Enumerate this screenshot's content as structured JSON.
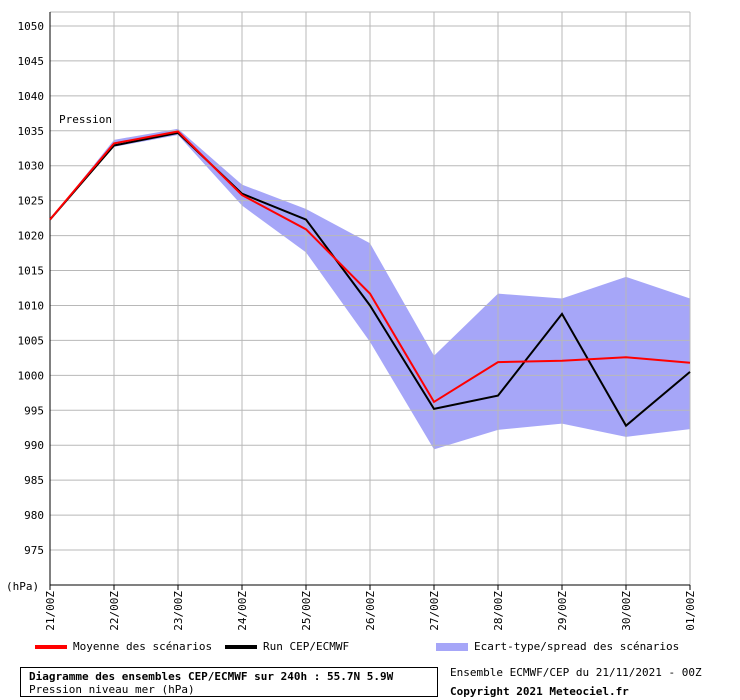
{
  "chart_data": {
    "type": "line",
    "ylabel": "(hPa)",
    "annotation": "Pression",
    "ylim": [
      970,
      1052
    ],
    "y_ticks": [
      975,
      980,
      985,
      990,
      995,
      1000,
      1005,
      1010,
      1015,
      1020,
      1025,
      1030,
      1035,
      1040,
      1045,
      1050
    ],
    "categories": [
      "21/00Z",
      "22/00Z",
      "23/00Z",
      "24/00Z",
      "25/00Z",
      "26/00Z",
      "27/00Z",
      "28/00Z",
      "29/00Z",
      "30/00Z",
      "01/00Z"
    ],
    "grid": true,
    "legend_position": "bottom",
    "series": [
      {
        "name": "Moyenne des scénarios",
        "color": "#ff0000",
        "values": [
          1022.3,
          1033.2,
          1034.9,
          1025.8,
          1020.9,
          1011.7,
          996.2,
          1001.9,
          1002.1,
          1002.6,
          1001.8
        ]
      },
      {
        "name": "Run CEP/ECMWF",
        "color": "#000000",
        "values": [
          1022.3,
          1032.9,
          1034.7,
          1026.0,
          1022.3,
          1010.0,
          995.2,
          997.1,
          1008.8,
          992.8,
          1000.5
        ]
      },
      {
        "name": "Ecart-type/spread des scénarios",
        "color": "#a6a6f8",
        "upper": [
          1022.3,
          1033.7,
          1035.3,
          1027.3,
          1023.8,
          1018.9,
          1002.8,
          1011.7,
          1011.0,
          1014.1,
          1011.0
        ],
        "lower": [
          1022.3,
          1032.7,
          1034.4,
          1024.3,
          1017.6,
          1004.8,
          989.4,
          992.2,
          993.1,
          991.2,
          992.3
        ]
      }
    ]
  },
  "legend": {
    "mean_label": "Moyenne des scénarios",
    "run_label": "Run CEP/ECMWF",
    "spread_label": "Ecart-type/spread des scénarios"
  },
  "title_box": {
    "line1": "Diagramme des ensembles CEP/ECMWF sur 240h : 55.7N 5.9W",
    "line2": "Pression niveau mer (hPa)"
  },
  "info": {
    "run_info": "Ensemble ECMWF/CEP du 21/11/2021 - 00Z",
    "copyright": "Copyright 2021 Meteociel.fr"
  }
}
